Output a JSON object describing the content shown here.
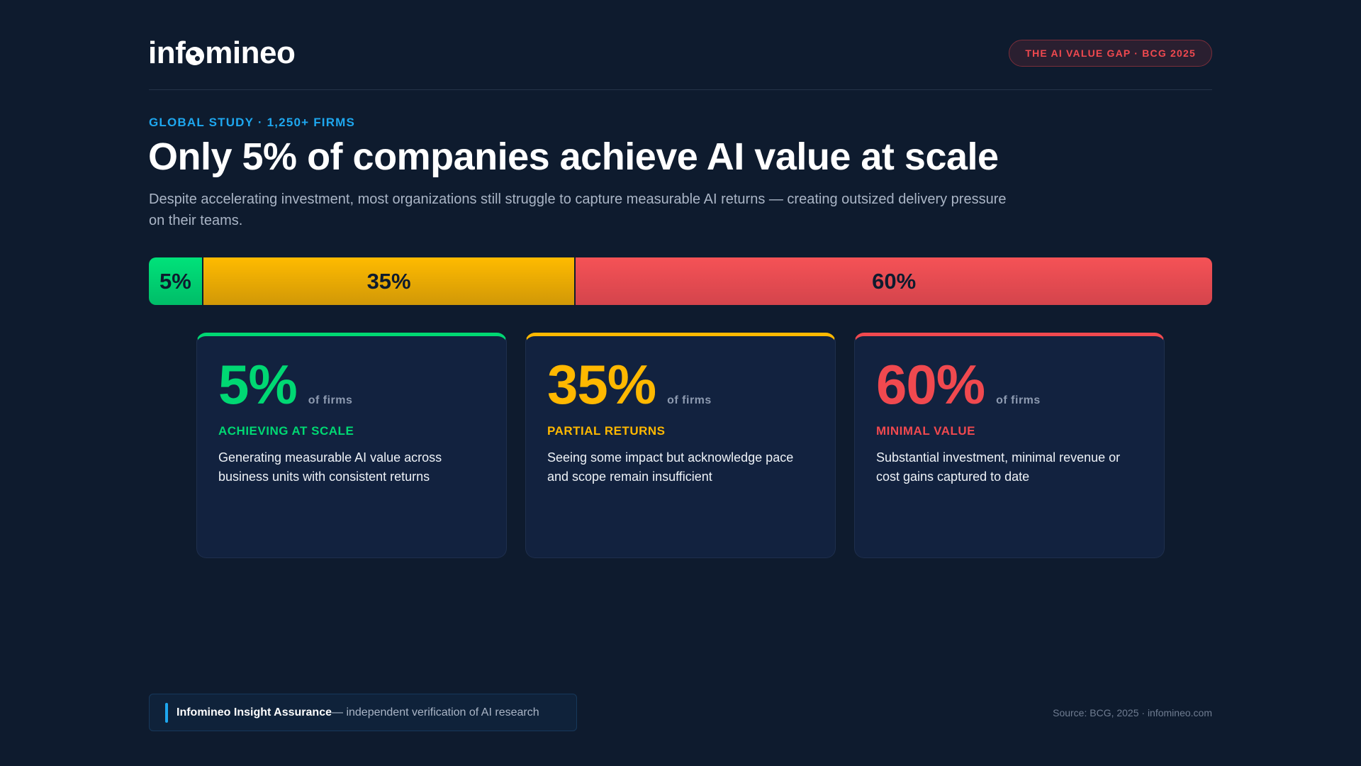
{
  "header": {
    "logo_pre": "inf",
    "logo_post": "mineo",
    "logo_text": "infomineo",
    "badge": "THE AI VALUE GAP · BCG 2025"
  },
  "hero": {
    "kicker": "GLOBAL STUDY · 1,250+ FIRMS",
    "title": "Only 5% of companies achieve AI value at scale",
    "subtitle": "Despite accelerating investment, most organizations still struggle to capture measurable AI returns — creating outsized delivery pressure on their teams."
  },
  "bar": {
    "segments": [
      {
        "label": "5%",
        "value": 5,
        "color": "#00d873"
      },
      {
        "label": "35%",
        "value": 35,
        "color": "#f0b000"
      },
      {
        "label": "60%",
        "value": 60,
        "color": "#ef4c52"
      }
    ]
  },
  "cards": [
    {
      "value": "5%",
      "unit": "of firms",
      "label": "ACHIEVING AT SCALE",
      "desc": "Generating measurable AI value across business units with consistent returns",
      "color": "#00d873"
    },
    {
      "value": "35%",
      "unit": "of firms",
      "label": "PARTIAL RETURNS",
      "desc": "Seeing some impact but acknowledge pace and scope remain insufficient",
      "color": "#ffb800"
    },
    {
      "value": "60%",
      "unit": "of firms",
      "label": "MINIMAL VALUE",
      "desc": "Substantial investment, minimal revenue or cost gains captured to date",
      "color": "#f0494f"
    }
  ],
  "footer": {
    "brand": "Infomineo Insight Assurance",
    "tagline": " — independent verification of AI research",
    "source": "Source: BCG, 2025 · infomineo.com"
  }
}
